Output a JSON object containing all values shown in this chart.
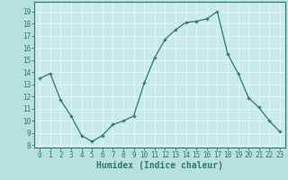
{
  "x": [
    0,
    1,
    2,
    3,
    4,
    5,
    6,
    7,
    8,
    9,
    10,
    11,
    12,
    13,
    14,
    15,
    16,
    17,
    18,
    19,
    20,
    21,
    22,
    23
  ],
  "y": [
    13.5,
    13.9,
    11.7,
    10.4,
    8.8,
    8.3,
    8.8,
    9.7,
    10.0,
    10.4,
    13.1,
    15.2,
    16.7,
    17.5,
    18.1,
    18.2,
    18.4,
    19.0,
    15.5,
    13.9,
    11.9,
    11.1,
    10.0,
    9.1
  ],
  "line_color": "#2d7a6a",
  "marker": "+",
  "marker_size": 3,
  "bg_color": "#b8e0de",
  "plot_bg_color": "#c8eaea",
  "grid_color": "#e8f8f8",
  "xlabel": "Humidex (Indice chaleur)",
  "ylabel_ticks": [
    8,
    9,
    10,
    11,
    12,
    13,
    14,
    15,
    16,
    17,
    18,
    19
  ],
  "xlabel_ticks": [
    0,
    1,
    2,
    3,
    4,
    5,
    6,
    7,
    8,
    9,
    10,
    11,
    12,
    13,
    14,
    15,
    16,
    17,
    18,
    19,
    20,
    21,
    22,
    23
  ],
  "xlim": [
    -0.5,
    23.5
  ],
  "ylim": [
    7.8,
    19.8
  ],
  "tick_label_color": "#2d7a6a",
  "axis_color": "#2d7a6a",
  "xlabel_fontsize": 7,
  "tick_fontsize": 5.5
}
